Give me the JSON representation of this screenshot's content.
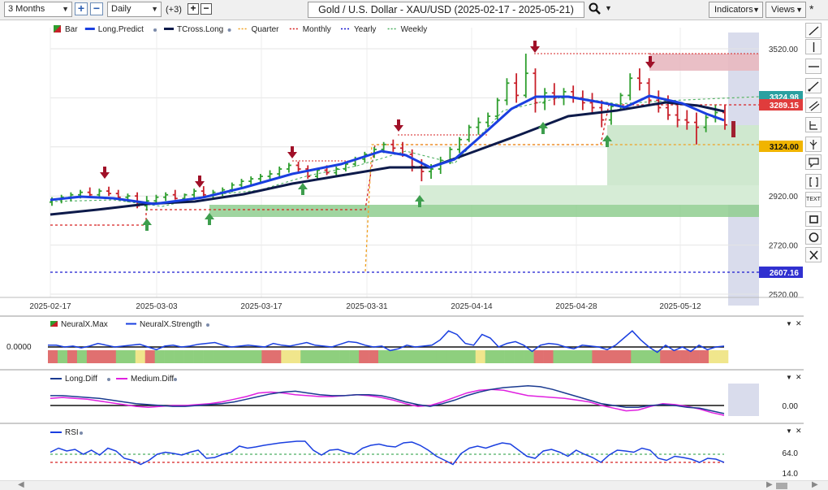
{
  "toolbar": {
    "period": "3 Months",
    "interval": "Daily",
    "extra_count": "(+3)",
    "title": "Gold / U.S. Dollar - XAU/USD (2025-02-17 - 2025-05-21)",
    "indicators_label": "Indicators",
    "views_label": "Views",
    "icons": [
      "plus-icon",
      "minus-icon",
      "search-icon",
      "caret-down-icon"
    ]
  },
  "right_tools": [
    {
      "name": "trendline-tool",
      "label": ""
    },
    {
      "name": "vertical-line-tool",
      "label": ""
    },
    {
      "name": "horizontal-line-tool",
      "label": ""
    },
    {
      "name": "ray-tool",
      "label": ""
    },
    {
      "name": "channel-tool",
      "label": ""
    },
    {
      "name": "fib-tool",
      "label": ""
    },
    {
      "name": "pitchfork-tool",
      "label": ""
    },
    {
      "name": "callout-tool",
      "label": ""
    },
    {
      "name": "bracket-tool",
      "label": ""
    },
    {
      "name": "text-tool",
      "label": "TEXT"
    },
    {
      "name": "rectangle-tool",
      "label": ""
    },
    {
      "name": "ellipse-tool",
      "label": ""
    },
    {
      "name": "delete-tool",
      "label": ""
    }
  ],
  "main_chart": {
    "legend": [
      {
        "name": "Bar",
        "color": "#2e9e2e"
      },
      {
        "name": "Long.Predict",
        "color": "#1a3fe0"
      },
      {
        "name": "TCross.Long",
        "color": "#0d1a4a"
      },
      {
        "name": "Quarter",
        "color": "#f0a020"
      },
      {
        "name": "Monthly",
        "color": "#d62020"
      },
      {
        "name": "Yearly",
        "color": "#1a1ad0"
      },
      {
        "name": "Weekly",
        "color": "#4caf60"
      }
    ],
    "y_ticks": [
      "3520.00",
      "2920.00",
      "2720.00",
      "2520.00"
    ],
    "x_ticks": [
      "2025-02-17",
      "2025-03-03",
      "2025-03-17",
      "2025-03-31",
      "2025-04-14",
      "2025-04-28",
      "2025-05-12"
    ],
    "price_labels": [
      {
        "text": "3324.98",
        "color": "#2aa0a0"
      },
      {
        "text": "3289.15",
        "color": "#e03c3c"
      },
      {
        "text": "3124.00",
        "color": "#f0b400"
      },
      {
        "text": "2607.16",
        "color": "#3030d0"
      }
    ]
  },
  "neural_pane": {
    "legend": [
      {
        "name": "NeuralX.Max",
        "color": "#2e9e2e"
      },
      {
        "name": "NeuralX.Strength",
        "color": "#1a3fe0"
      }
    ],
    "y_label": "0.0000",
    "strength": [
      0.1,
      0.1,
      0.0,
      0.05,
      -0.05,
      0.05,
      0.2,
      0.1,
      0.0,
      0.05,
      0.1,
      0.15,
      0.0,
      -0.15,
      0.05,
      0.1,
      0.0,
      0.05,
      0.15,
      0.2,
      0.25,
      0.1,
      0.0,
      0.05,
      0.1,
      0.05,
      0.0,
      0.2,
      0.1,
      0.05,
      0.15,
      0.25,
      0.1,
      0.05,
      0.0,
      0.15,
      0.3,
      0.25,
      0.1,
      0.0,
      0.05,
      -0.2,
      -0.1,
      0.1,
      0.0,
      0.05,
      0.1,
      0.4,
      0.9,
      0.7,
      0.2,
      0.1,
      0.7,
      0.5,
      0.0,
      0.2,
      0.3,
      0.1,
      -0.25,
      0.1,
      0.2,
      0.15,
      0.0,
      -0.1,
      0.1,
      0.05,
      0.0,
      -0.15,
      0.1,
      0.5,
      0.9,
      0.4,
      0.0,
      -0.3,
      0.1,
      -0.2,
      0.0,
      -0.25,
      0.1,
      -0.15,
      0.0,
      0.05
    ],
    "blocks": [
      "R",
      "G",
      "R",
      "G",
      "R",
      "R",
      "R",
      "G",
      "G",
      "Y",
      "R",
      "G",
      "G",
      "G",
      "G",
      "G",
      "G",
      "G",
      "G",
      "G",
      "G",
      "G",
      "R",
      "R",
      "Y",
      "Y",
      "G",
      "G",
      "G",
      "G",
      "G",
      "G",
      "R",
      "R",
      "G",
      "G",
      "G",
      "G",
      "G",
      "G",
      "G",
      "G",
      "G",
      "G",
      "Y",
      "G",
      "G",
      "G",
      "G",
      "G",
      "R",
      "R",
      "G",
      "G",
      "G",
      "G",
      "R",
      "R",
      "R",
      "R",
      "G",
      "G",
      "G",
      "R",
      "R",
      "R",
      "R",
      "R",
      "Y",
      "Y"
    ]
  },
  "diff_pane": {
    "legend": [
      {
        "name": "Long.Diff",
        "color": "#1a3a90"
      },
      {
        "name": "Medium.Diff",
        "color": "#e020e0"
      }
    ],
    "y_label": "0.00",
    "long_diff": [
      0.55,
      0.55,
      0.5,
      0.45,
      0.4,
      0.3,
      0.2,
      0.1,
      0.05,
      0.0,
      -0.05,
      -0.05,
      0.0,
      0.05,
      0.1,
      0.2,
      0.35,
      0.5,
      0.65,
      0.75,
      0.8,
      0.7,
      0.6,
      0.55,
      0.55,
      0.6,
      0.6,
      0.55,
      0.4,
      0.2,
      0.05,
      -0.05,
      0.1,
      0.3,
      0.55,
      0.75,
      0.9,
      1.0,
      1.05,
      1.1,
      1.05,
      0.9,
      0.7,
      0.5,
      0.3,
      0.1,
      0.0,
      -0.1,
      -0.1,
      0.0,
      0.05,
      0.0,
      -0.1,
      -0.15,
      -0.3,
      -0.45
    ],
    "medium_diff": [
      0.4,
      0.45,
      0.4,
      0.35,
      0.25,
      0.15,
      0.05,
      -0.05,
      -0.1,
      -0.05,
      0.0,
      0.0,
      0.05,
      0.1,
      0.2,
      0.35,
      0.5,
      0.7,
      0.75,
      0.7,
      0.6,
      0.55,
      0.5,
      0.5,
      0.55,
      0.6,
      0.55,
      0.45,
      0.3,
      0.1,
      -0.05,
      0.0,
      0.2,
      0.45,
      0.7,
      0.85,
      0.9,
      0.85,
      0.7,
      0.55,
      0.5,
      0.45,
      0.4,
      0.3,
      0.2,
      0.0,
      -0.15,
      -0.3,
      -0.25,
      -0.05,
      0.1,
      0.05,
      -0.05,
      -0.2,
      -0.4,
      -0.55
    ]
  },
  "rsi_pane": {
    "legend": [
      {
        "name": "RSI",
        "color": "#1a3fe0"
      }
    ],
    "y_ticks": [
      "64.0",
      "14.0"
    ],
    "rsi": [
      55,
      65,
      58,
      62,
      50,
      60,
      48,
      65,
      58,
      40,
      35,
      25,
      35,
      50,
      55,
      52,
      48,
      55,
      60,
      40,
      42,
      50,
      55,
      70,
      65,
      68,
      72,
      75,
      78,
      80,
      82,
      82,
      60,
      48,
      60,
      62,
      55,
      50,
      65,
      72,
      75,
      70,
      68,
      78,
      80,
      72,
      60,
      45,
      35,
      25,
      52,
      65,
      70,
      65,
      72,
      78,
      75,
      60,
      45,
      40,
      58,
      62,
      55,
      45,
      60,
      50,
      42,
      30,
      48,
      60,
      58,
      55,
      65,
      60,
      40,
      35,
      45,
      42,
      38,
      30,
      40,
      38,
      30
    ]
  }
}
